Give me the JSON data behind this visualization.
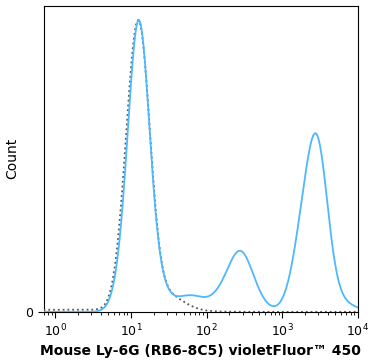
{
  "title": "",
  "xlabel": "Mouse Ly-6G (RB6-8C5) violetFluor™ 450",
  "ylabel": "Count",
  "xlim_log": [
    0.7,
    10000
  ],
  "ylim": [
    0,
    1.05
  ],
  "background_color": "#ffffff",
  "plot_bg_color": "#ffffff",
  "solid_color": "#4db8ff",
  "dashed_color": "#555555",
  "solid_linewidth": 1.3,
  "dashed_linewidth": 1.3,
  "xlabel_fontsize": 10,
  "ylabel_fontsize": 10,
  "tick_labelsize": 9
}
